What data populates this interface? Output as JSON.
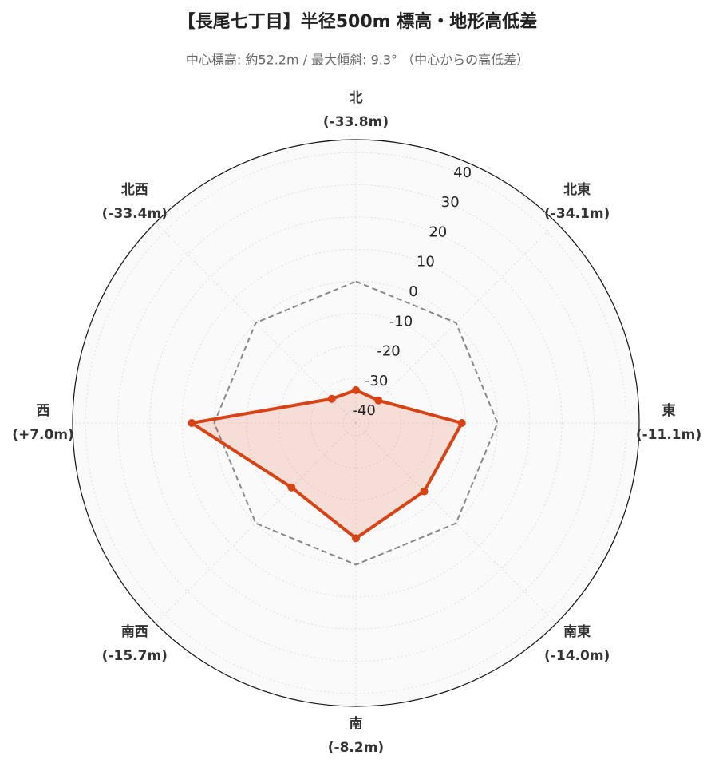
{
  "chart_data": {
    "type": "radar",
    "title": "【長尾七丁目】半径500m 標高・地形高低差",
    "subtitle": "中心標高: 約52.2m / 最大傾斜: 9.3° （中心からの高低差）",
    "categories": [
      "北",
      "北東",
      "東",
      "南東",
      "南",
      "南西",
      "西",
      "北西"
    ],
    "values": [
      -33.8,
      -34.1,
      -11.1,
      -14.0,
      -8.2,
      -15.7,
      7.0,
      -33.4
    ],
    "value_labels": [
      "(-33.8m)",
      "(-34.1m)",
      "(-11.1m)",
      "(-14.0m)",
      "(-8.2m)",
      "(-15.7m)",
      "(+7.0m)",
      "(-33.4m)"
    ],
    "color": "#d84315",
    "reference_value": 0,
    "rlim": [
      -44,
      44
    ],
    "rticks": [
      -40,
      -30,
      -20,
      -10,
      0,
      10,
      20,
      30,
      40
    ],
    "grid": true
  }
}
